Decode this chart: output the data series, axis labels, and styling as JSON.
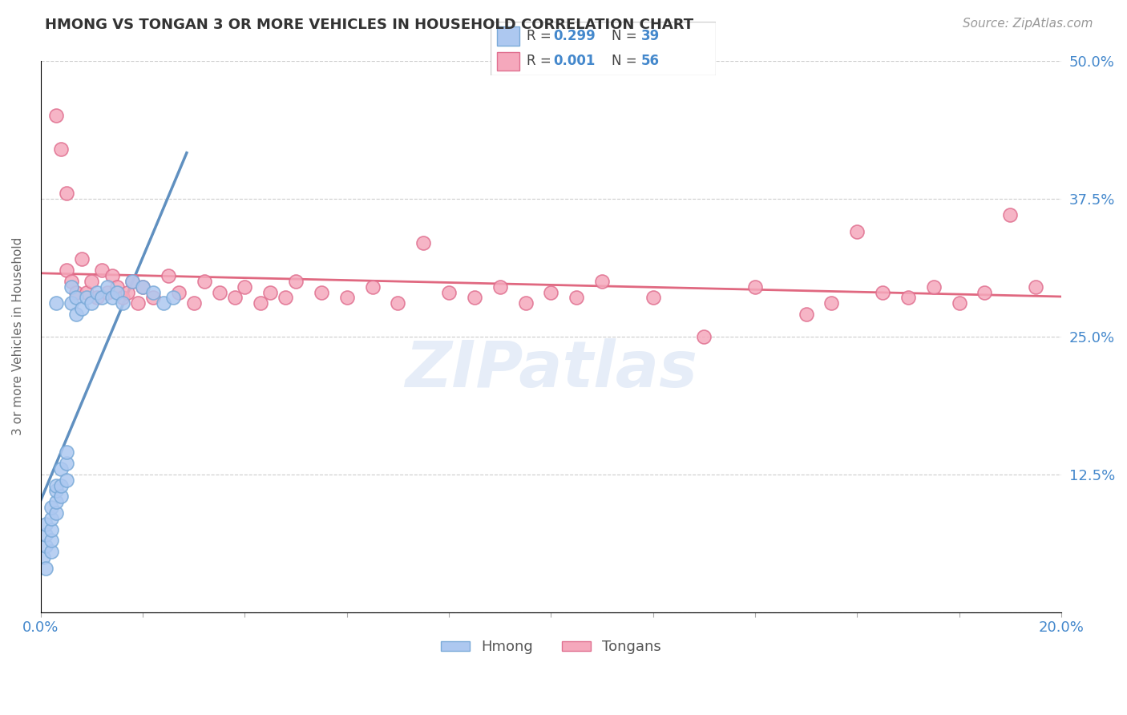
{
  "title": "HMONG VS TONGAN 3 OR MORE VEHICLES IN HOUSEHOLD CORRELATION CHART",
  "source": "Source: ZipAtlas.com",
  "ylabel": "3 or more Vehicles in Household",
  "xlim": [
    0.0,
    0.2
  ],
  "ylim": [
    0.0,
    0.5
  ],
  "hmong_R": 0.299,
  "hmong_N": 39,
  "tongan_R": 0.001,
  "tongan_N": 56,
  "hmong_color": "#adc8f0",
  "tongan_color": "#f5a8bc",
  "hmong_edge": "#7aaad8",
  "tongan_edge": "#e07090",
  "trend_hmong_color": "#6090c0",
  "trend_tongan_color": "#e06880",
  "watermark": "ZIPatlas",
  "watermark_color": "#c8d8f0",
  "hmong_x": [
    0.0005,
    0.001,
    0.001,
    0.001,
    0.001,
    0.002,
    0.002,
    0.002,
    0.002,
    0.002,
    0.003,
    0.003,
    0.003,
    0.003,
    0.003,
    0.004,
    0.004,
    0.004,
    0.005,
    0.005,
    0.005,
    0.006,
    0.006,
    0.007,
    0.007,
    0.008,
    0.009,
    0.01,
    0.011,
    0.012,
    0.013,
    0.014,
    0.015,
    0.016,
    0.018,
    0.02,
    0.022,
    0.024,
    0.026
  ],
  "hmong_y": [
    0.05,
    0.04,
    0.06,
    0.07,
    0.08,
    0.055,
    0.065,
    0.075,
    0.085,
    0.095,
    0.09,
    0.1,
    0.11,
    0.115,
    0.28,
    0.105,
    0.115,
    0.13,
    0.12,
    0.135,
    0.145,
    0.28,
    0.295,
    0.27,
    0.285,
    0.275,
    0.285,
    0.28,
    0.29,
    0.285,
    0.295,
    0.285,
    0.29,
    0.28,
    0.3,
    0.295,
    0.29,
    0.28,
    0.285
  ],
  "tongan_x": [
    0.003,
    0.004,
    0.005,
    0.005,
    0.006,
    0.007,
    0.008,
    0.009,
    0.01,
    0.011,
    0.012,
    0.013,
    0.014,
    0.015,
    0.016,
    0.017,
    0.018,
    0.019,
    0.02,
    0.022,
    0.025,
    0.027,
    0.03,
    0.032,
    0.035,
    0.038,
    0.04,
    0.043,
    0.045,
    0.048,
    0.05,
    0.055,
    0.06,
    0.065,
    0.07,
    0.075,
    0.08,
    0.085,
    0.09,
    0.095,
    0.1,
    0.105,
    0.11,
    0.12,
    0.13,
    0.14,
    0.15,
    0.155,
    0.16,
    0.165,
    0.17,
    0.175,
    0.18,
    0.185,
    0.19,
    0.195
  ],
  "tongan_y": [
    0.45,
    0.42,
    0.38,
    0.31,
    0.3,
    0.29,
    0.32,
    0.29,
    0.3,
    0.285,
    0.31,
    0.29,
    0.305,
    0.295,
    0.285,
    0.29,
    0.3,
    0.28,
    0.295,
    0.285,
    0.305,
    0.29,
    0.28,
    0.3,
    0.29,
    0.285,
    0.295,
    0.28,
    0.29,
    0.285,
    0.3,
    0.29,
    0.285,
    0.295,
    0.28,
    0.335,
    0.29,
    0.285,
    0.295,
    0.28,
    0.29,
    0.285,
    0.3,
    0.285,
    0.25,
    0.295,
    0.27,
    0.28,
    0.345,
    0.29,
    0.285,
    0.295,
    0.28,
    0.29,
    0.36,
    0.295
  ]
}
